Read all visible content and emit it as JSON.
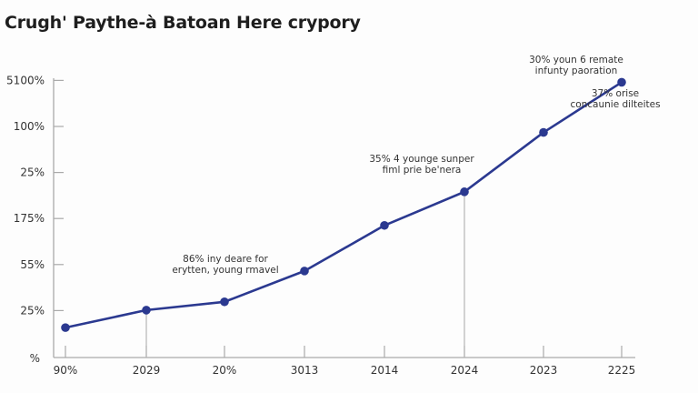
{
  "chart_data": {
    "type": "line",
    "title": "Crugh' Paythe-à Batoan Here crypory",
    "xlabel": "",
    "ylabel": "",
    "x_tick_labels": [
      "90%",
      "2029",
      "20%",
      "3013",
      "2014",
      "2024",
      "2023",
      "2225"
    ],
    "y_tick_labels": [
      "%",
      "25%",
      "55%",
      "175%",
      "25%",
      "100%",
      "5100%"
    ],
    "y_scale_note_units": "tick index (0 = bottom tick label, 6 = top tick label)",
    "ylim": [
      0,
      6
    ],
    "series": [
      {
        "values": [
          0.63,
          1.01,
          1.19,
          1.86,
          2.85,
          3.58,
          4.87,
          5.96
        ],
        "color": "#2b3990"
      }
    ],
    "drop_lines_at": [
      "2029",
      "2024"
    ],
    "grid": false,
    "annotations": [
      {
        "lines": [
          "86% iny deare for",
          "erytten, young rmavel"
        ],
        "near": "3013"
      },
      {
        "lines": [
          "35% 4 younge sunper",
          "fiml prie be'nera"
        ],
        "near": "2024"
      },
      {
        "lines": [
          "30% youn 6 remate",
          "infunty paoration"
        ],
        "near": "2225"
      },
      {
        "lines": [
          "37% orise",
          "concaunie dilteites"
        ],
        "near": "2225"
      }
    ]
  }
}
